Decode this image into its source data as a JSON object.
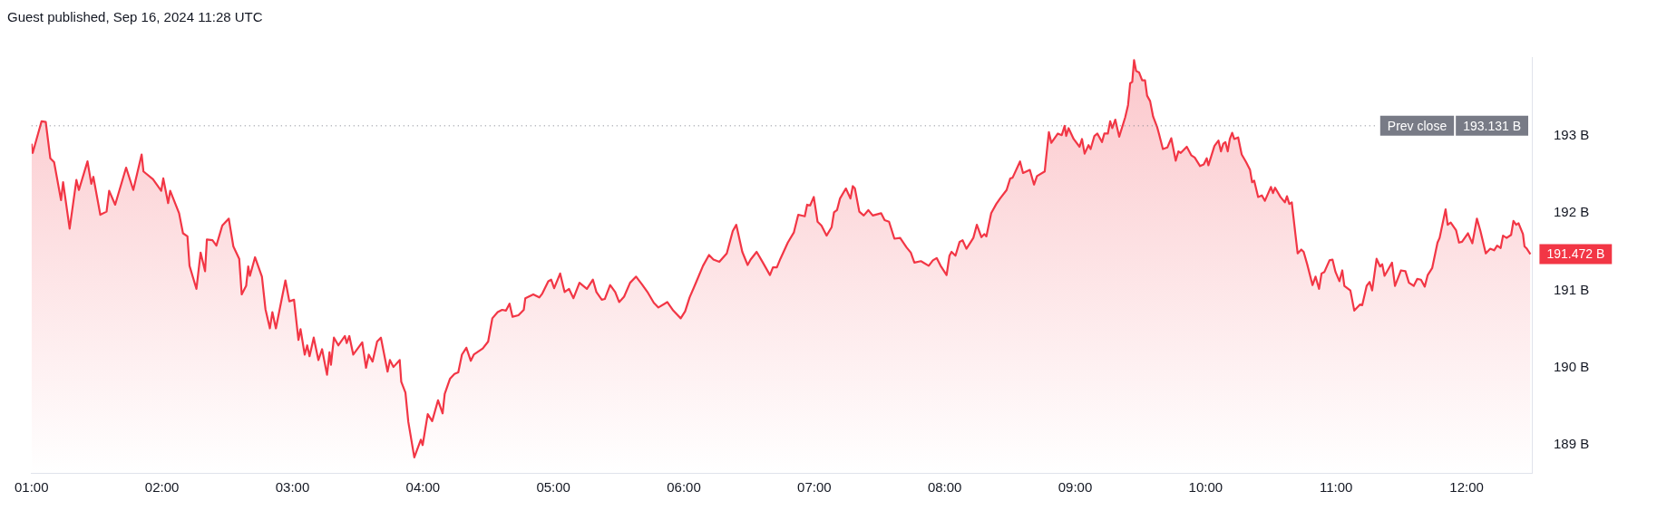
{
  "chart_data": {
    "type": "area",
    "title": "Guest published, Sep 16, 2024 11:28 UTC",
    "x": [
      1.0,
      1.009,
      1.077,
      1.109,
      1.144,
      1.173,
      1.226,
      1.242,
      1.292,
      1.344,
      1.363,
      1.429,
      1.458,
      1.474,
      1.527,
      1.575,
      1.595,
      1.641,
      1.725,
      1.78,
      1.844,
      1.858,
      1.931,
      1.994,
      2.01,
      2.047,
      2.063,
      2.131,
      2.161,
      2.195,
      2.211,
      2.264,
      2.296,
      2.33,
      2.344,
      2.387,
      2.417,
      2.462,
      2.512,
      2.547,
      2.592,
      2.611,
      2.645,
      2.661,
      2.674,
      2.713,
      2.766,
      2.793,
      2.827,
      2.846,
      2.873,
      2.946,
      2.976,
      3.012,
      3.046,
      3.062,
      3.094,
      3.113,
      3.131,
      3.163,
      3.199,
      3.227,
      3.265,
      3.284,
      3.295,
      3.318,
      3.352,
      3.402,
      3.416,
      3.436,
      3.466,
      3.535,
      3.564,
      3.585,
      3.614,
      3.649,
      3.678,
      3.729,
      3.747,
      3.774,
      3.822,
      3.834,
      3.866,
      3.888,
      3.934,
      3.984,
      3.998,
      4.037,
      4.071,
      4.116,
      4.151,
      4.167,
      4.208,
      4.242,
      4.271,
      4.299,
      4.333,
      4.367,
      4.39,
      4.459,
      4.5,
      4.532,
      4.573,
      4.607,
      4.637,
      4.664,
      4.687,
      4.732,
      4.773,
      4.785,
      4.846,
      4.892,
      4.915,
      4.961,
      4.983,
      5.006,
      5.052,
      5.086,
      5.12,
      5.154,
      5.2,
      5.257,
      5.303,
      5.33,
      5.371,
      5.394,
      5.435,
      5.474,
      5.504,
      5.542,
      5.588,
      5.634,
      5.679,
      5.725,
      5.77,
      5.805,
      5.873,
      5.919,
      5.976,
      6.01,
      6.044,
      6.09,
      6.147,
      6.193,
      6.227,
      6.272,
      6.329,
      6.375,
      6.402,
      6.448,
      6.489,
      6.512,
      6.558,
      6.603,
      6.66,
      6.683,
      6.713,
      6.74,
      6.797,
      6.843,
      6.877,
      6.927,
      6.945,
      6.968,
      6.996,
      7.025,
      7.055,
      7.094,
      7.133,
      7.151,
      7.174,
      7.197,
      7.242,
      7.277,
      7.295,
      7.311,
      7.345,
      7.379,
      7.414,
      7.448,
      7.512,
      7.539,
      7.573,
      7.614,
      7.658,
      7.706,
      7.74,
      7.767,
      7.817,
      7.877,
      7.909,
      7.938,
      7.968,
      8.014,
      8.036,
      8.052,
      8.082,
      8.114,
      8.137,
      8.166,
      8.219,
      8.246,
      8.281,
      8.303,
      8.319,
      8.356,
      8.395,
      8.424,
      8.474,
      8.502,
      8.52,
      8.577,
      8.6,
      8.652,
      8.684,
      8.707,
      8.766,
      8.798,
      8.817,
      8.867,
      8.897,
      8.919,
      8.931,
      8.949,
      8.988,
      9.033,
      9.052,
      9.072,
      9.102,
      9.118,
      9.147,
      9.17,
      9.205,
      9.223,
      9.25,
      9.268,
      9.284,
      9.307,
      9.337,
      9.383,
      9.405,
      9.421,
      9.437,
      9.451,
      9.467,
      9.49,
      9.513,
      9.535,
      9.551,
      9.574,
      9.597,
      9.627,
      9.643,
      9.672,
      9.706,
      9.736,
      9.77,
      9.791,
      9.809,
      9.855,
      9.889,
      9.916,
      9.957,
      9.985,
      10.008,
      10.021,
      10.067,
      10.098,
      10.117,
      10.135,
      10.151,
      10.169,
      10.185,
      10.203,
      10.219,
      10.249,
      10.276,
      10.31,
      10.34,
      10.356,
      10.372,
      10.402,
      10.431,
      10.454,
      10.5,
      10.516,
      10.532,
      10.573,
      10.607,
      10.623,
      10.641,
      10.66,
      10.687,
      10.705,
      10.733,
      10.751,
      10.778,
      10.819,
      10.842,
      10.869,
      10.888,
      10.91,
      10.949,
      10.972,
      10.995,
      11.025,
      11.047,
      11.063,
      11.109,
      11.139,
      11.184,
      11.2,
      11.234,
      11.257,
      11.276,
      11.31,
      11.337,
      11.353,
      11.371,
      11.428,
      11.451,
      11.497,
      11.531,
      11.558,
      11.595,
      11.622,
      11.65,
      11.679,
      11.702,
      11.736,
      11.777,
      11.793,
      11.839,
      11.855,
      11.878,
      11.919,
      11.942,
      11.965,
      12.01,
      12.044,
      12.079,
      12.106,
      12.147,
      12.181,
      12.211,
      12.234,
      12.261,
      12.279,
      12.307,
      12.341,
      12.359,
      12.38,
      12.398,
      12.432,
      12.444,
      12.462,
      12.489
    ],
    "series": [
      {
        "color": "#f23645",
        "values": [
          192.9,
          192.78,
          193.19,
          193.18,
          192.71,
          192.66,
          192.17,
          192.4,
          191.8,
          192.43,
          192.3,
          192.67,
          192.38,
          192.47,
          191.98,
          192.02,
          192.29,
          192.11,
          192.59,
          192.3,
          192.76,
          192.54,
          192.44,
          192.29,
          192.45,
          192.13,
          192.29,
          192.0,
          191.74,
          191.7,
          191.32,
          191.02,
          191.49,
          191.25,
          191.66,
          191.65,
          191.58,
          191.84,
          191.93,
          191.57,
          191.41,
          190.95,
          191.06,
          191.31,
          191.19,
          191.43,
          191.18,
          190.76,
          190.51,
          190.72,
          190.51,
          191.13,
          190.86,
          190.88,
          190.36,
          190.5,
          190.17,
          190.29,
          190.15,
          190.39,
          190.1,
          190.24,
          189.91,
          190.2,
          190.04,
          190.39,
          190.29,
          190.41,
          190.32,
          190.41,
          190.17,
          190.33,
          190.0,
          190.17,
          190.08,
          190.34,
          190.39,
          189.95,
          190.1,
          190.01,
          190.1,
          189.82,
          189.68,
          189.3,
          188.84,
          189.07,
          189.0,
          189.4,
          189.31,
          189.58,
          189.41,
          189.66,
          189.86,
          189.92,
          189.94,
          190.17,
          190.26,
          190.09,
          190.17,
          190.25,
          190.34,
          190.64,
          190.72,
          190.75,
          190.74,
          190.83,
          190.66,
          190.68,
          190.75,
          190.9,
          190.95,
          190.91,
          190.96,
          191.12,
          191.14,
          191.03,
          191.22,
          190.98,
          191.02,
          190.9,
          191.1,
          191.02,
          191.14,
          190.98,
          190.88,
          190.89,
          191.07,
          190.98,
          190.85,
          190.92,
          191.1,
          191.18,
          191.08,
          190.97,
          190.84,
          190.78,
          190.85,
          190.74,
          190.64,
          190.73,
          190.91,
          191.09,
          191.32,
          191.46,
          191.4,
          191.37,
          191.48,
          191.77,
          191.85,
          191.5,
          191.33,
          191.4,
          191.5,
          191.37,
          191.2,
          191.3,
          191.3,
          191.41,
          191.62,
          191.75,
          191.98,
          191.96,
          192.11,
          192.1,
          192.21,
          191.89,
          191.84,
          191.71,
          191.82,
          192.01,
          192.04,
          192.19,
          192.32,
          192.19,
          192.35,
          192.32,
          192.02,
          191.97,
          192.04,
          191.97,
          192.0,
          191.91,
          191.89,
          191.67,
          191.68,
          191.56,
          191.49,
          191.36,
          191.38,
          191.32,
          191.39,
          191.42,
          191.32,
          191.2,
          191.45,
          191.5,
          191.45,
          191.63,
          191.65,
          191.54,
          191.68,
          191.85,
          191.69,
          191.73,
          191.7,
          192.0,
          192.12,
          192.19,
          192.3,
          192.45,
          192.46,
          192.67,
          192.52,
          192.56,
          192.37,
          192.48,
          192.54,
          193.05,
          192.91,
          193.03,
          193.01,
          193.13,
          193.0,
          193.1,
          192.96,
          192.86,
          192.96,
          192.77,
          192.88,
          192.83,
          193.0,
          193.03,
          192.92,
          193.03,
          193.03,
          193.19,
          193.1,
          193.21,
          192.99,
          193.24,
          193.4,
          193.68,
          193.7,
          193.98,
          193.84,
          193.82,
          193.72,
          193.72,
          193.52,
          193.45,
          193.25,
          193.12,
          193.02,
          192.83,
          192.85,
          192.97,
          192.68,
          192.8,
          192.78,
          192.86,
          192.75,
          192.72,
          192.61,
          192.63,
          192.71,
          192.62,
          192.87,
          192.94,
          192.8,
          192.9,
          192.92,
          192.8,
          192.96,
          193.04,
          192.96,
          192.98,
          192.76,
          192.66,
          192.56,
          192.4,
          192.42,
          192.21,
          192.23,
          192.16,
          192.34,
          192.26,
          192.33,
          192.21,
          192.14,
          192.22,
          192.12,
          192.14,
          191.74,
          191.48,
          191.53,
          191.5,
          191.34,
          191.07,
          191.18,
          191.02,
          191.22,
          191.24,
          191.39,
          191.4,
          191.24,
          191.12,
          191.26,
          191.06,
          191.0,
          190.74,
          190.82,
          190.81,
          191.06,
          191.11,
          191.0,
          191.41,
          191.31,
          191.34,
          191.19,
          191.36,
          191.06,
          191.26,
          191.25,
          191.1,
          191.06,
          191.15,
          191.14,
          191.05,
          191.2,
          191.29,
          191.62,
          191.68,
          192.05,
          191.85,
          191.88,
          191.78,
          191.62,
          191.63,
          191.74,
          191.61,
          191.93,
          191.77,
          191.48,
          191.54,
          191.52,
          191.58,
          191.55,
          191.71,
          191.68,
          191.72,
          191.9,
          191.85,
          191.87,
          191.73,
          191.57,
          191.54,
          191.47
        ]
      }
    ],
    "xlim": [
      1,
      12.5
    ],
    "xticks": [
      {
        "value": 1,
        "label": "01:00"
      },
      {
        "value": 2,
        "label": "02:00"
      },
      {
        "value": 3,
        "label": "03:00"
      },
      {
        "value": 4,
        "label": "04:00"
      },
      {
        "value": 5,
        "label": "05:00"
      },
      {
        "value": 6,
        "label": "06:00"
      },
      {
        "value": 7,
        "label": "07:00"
      },
      {
        "value": 8,
        "label": "08:00"
      },
      {
        "value": 9,
        "label": "09:00"
      },
      {
        "value": 10,
        "label": "10:00"
      },
      {
        "value": 11,
        "label": "11:00"
      },
      {
        "value": 12,
        "label": "12:00"
      }
    ],
    "ylim": [
      188.64,
      194.02
    ],
    "yticks": [
      {
        "value": 189,
        "label": "189 B"
      },
      {
        "value": 190,
        "label": "190 B"
      },
      {
        "value": 191,
        "label": "191 B"
      },
      {
        "value": 192,
        "label": "192 B"
      },
      {
        "value": 193,
        "label": "193 B"
      }
    ],
    "ref_lines": [
      {
        "axis": "y",
        "value": 193.131,
        "label": "Prev close",
        "color": "#787b86",
        "line_style": "dotted"
      }
    ],
    "annotations": [
      "193.131 B",
      {
        "text": "191.472 B",
        "x": 12.489,
        "y": 191.472
      }
    ]
  }
}
